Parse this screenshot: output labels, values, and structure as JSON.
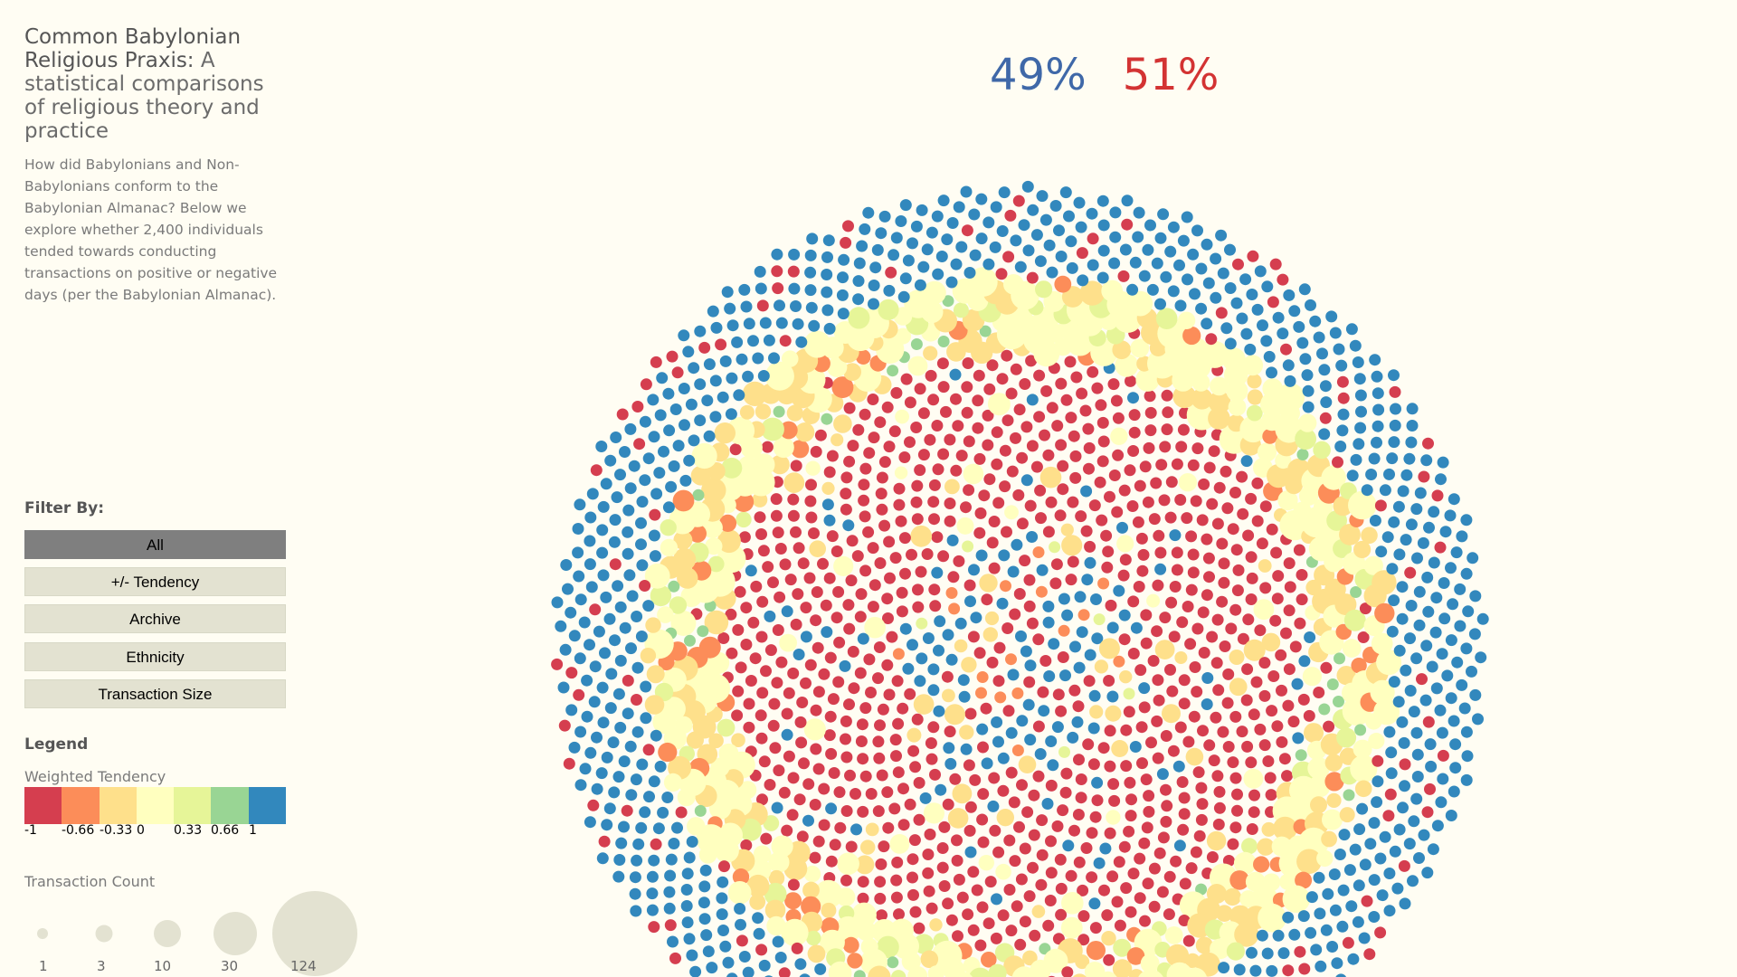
{
  "sidebar": {
    "title_main": "Common Babylonian Religious Praxis:",
    "title_sub": " A statistical comparisons of religious theory and practice",
    "intro": "How did Babylonians and Non-Babylonians conform to the Babylonian Almanac? Below we explore whether 2,400 individuals tended towards conducting transactions on positive or negative days (per the Babylonian Almanac)."
  },
  "filters": {
    "heading": "Filter By:",
    "buttons": [
      {
        "label": "All",
        "active": true
      },
      {
        "label": "+/- Tendency",
        "active": false
      },
      {
        "label": "Archive",
        "active": false
      },
      {
        "label": "Ethnicity",
        "active": false
      },
      {
        "label": "Transaction Size",
        "active": false
      }
    ]
  },
  "legend": {
    "heading": "Legend",
    "tendency_label": "Weighted Tendency",
    "colors": [
      "#d53e4f",
      "#fc8d59",
      "#fee08b",
      "#ffffbf",
      "#e6f598",
      "#99d594",
      "#3288bd"
    ],
    "ticks": [
      "-1",
      "-0.66",
      "-0.33",
      "0",
      "0.33",
      "0.66",
      "1"
    ],
    "count_label": "Transaction Count",
    "sizes": [
      "1",
      "3",
      "10",
      "30",
      "124"
    ],
    "size_color": "#e3e2d1"
  },
  "chart_data": {
    "type": "scatter",
    "description_kind": "packed bubble chart, colored by weighted tendency, sized by transaction count",
    "n_individuals": 2400,
    "negative_percent": "49%",
    "positive_percent": "51%",
    "colors": {
      "negative": "#d53e4f",
      "positive": "#3288bd",
      "mid_neg": "#fc8d59",
      "weak_neg": "#fee08b",
      "neutral": "#ffffbf",
      "weak_pos": "#e6f598",
      "mid_pos": "#99d594"
    }
  }
}
